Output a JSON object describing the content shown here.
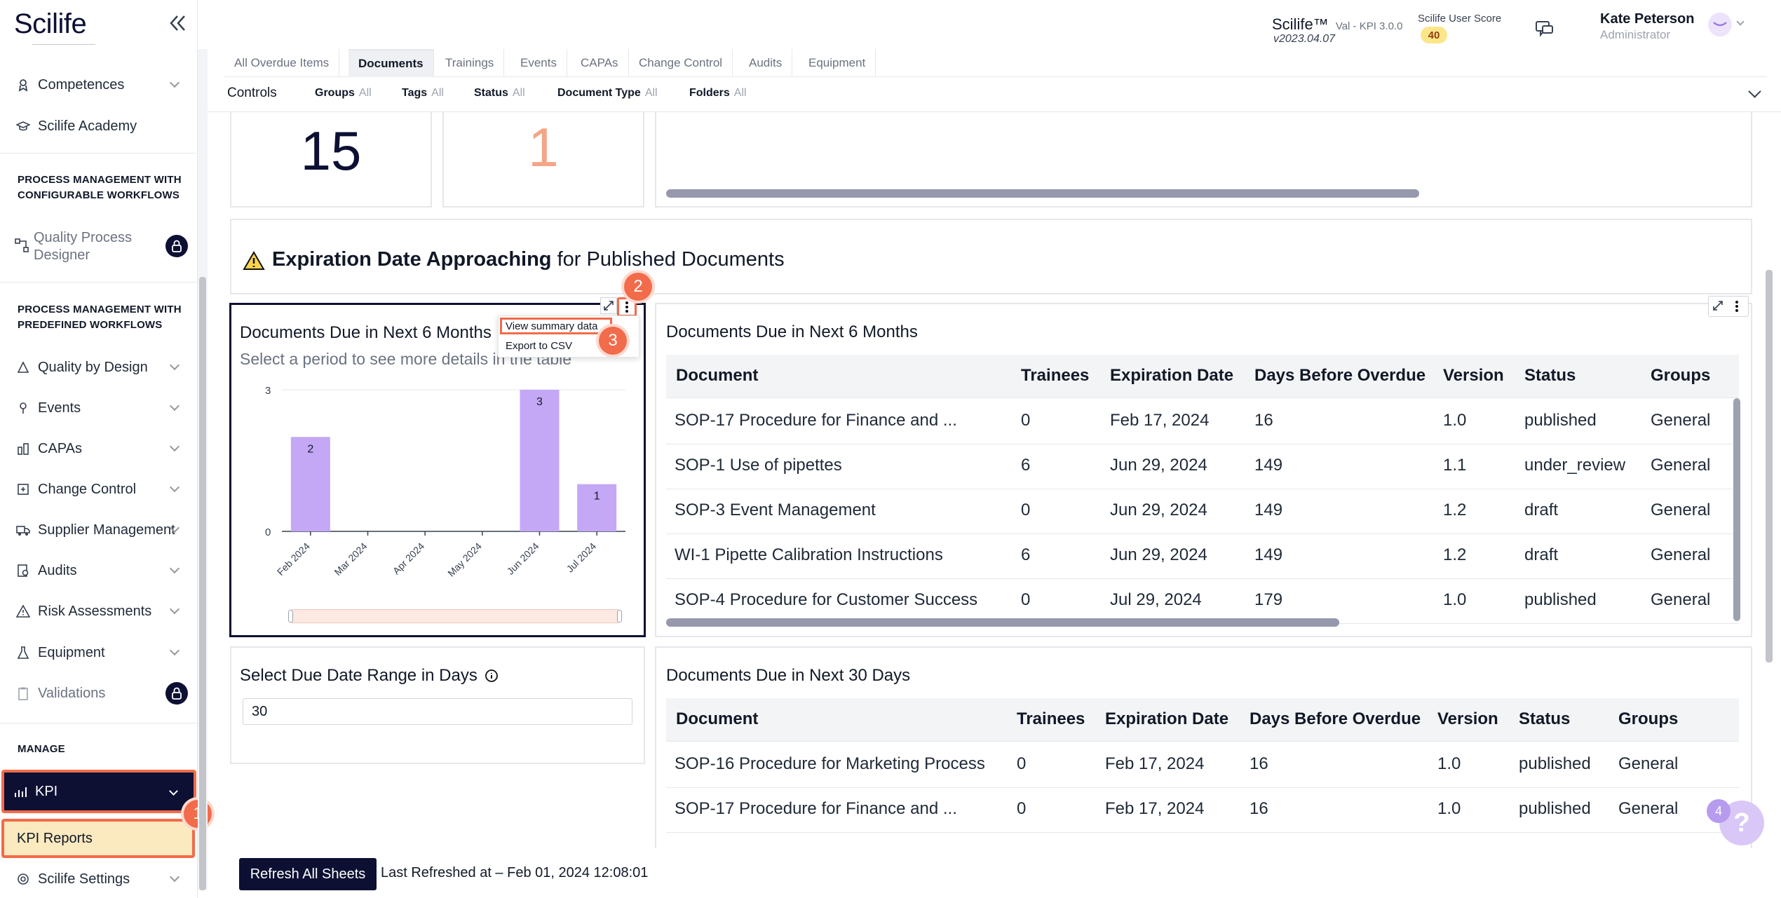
{
  "sidebar": {
    "logo": "Scilife",
    "items_top": [
      {
        "label": "Competences"
      },
      {
        "label": "Scilife Academy"
      }
    ],
    "section_workflows": "PROCESS MANAGEMENT WITH CONFIGURABLE WORKFLOWS",
    "qpd_label": "Quality Process Designer",
    "section_predefined": "PROCESS MANAGEMENT WITH PREDEFINED WORKFLOWS",
    "items_predefined": [
      {
        "label": "Quality by Design"
      },
      {
        "label": "Events"
      },
      {
        "label": "CAPAs"
      },
      {
        "label": "Change Control"
      },
      {
        "label": "Supplier Management"
      },
      {
        "label": "Audits"
      },
      {
        "label": "Risk Assessments"
      },
      {
        "label": "Equipment"
      },
      {
        "label": "Validations"
      }
    ],
    "section_manage": "MANAGE",
    "kpi_label": "KPI",
    "kpi_reports_label": "KPI Reports",
    "settings_label": "Scilife Settings"
  },
  "header": {
    "brand": "Scilife™",
    "env": "Val - KPI 3.0.0",
    "version": "v2023.04.07",
    "user_score_label": "Scilife User Score",
    "user_score": "40",
    "user_name": "Kate Peterson",
    "user_role": "Administrator"
  },
  "tabs": [
    {
      "label": "All Overdue Items"
    },
    {
      "label": "Documents"
    },
    {
      "label": "Trainings"
    },
    {
      "label": "Events"
    },
    {
      "label": "CAPAs"
    },
    {
      "label": "Change Control"
    },
    {
      "label": "Audits"
    },
    {
      "label": "Equipment"
    }
  ],
  "controls": {
    "label": "Controls",
    "filters": [
      {
        "name": "Groups",
        "value": "All"
      },
      {
        "name": "Tags",
        "value": "All"
      },
      {
        "name": "Status",
        "value": "All"
      },
      {
        "name": "Document Type",
        "value": "All"
      },
      {
        "name": "Folders",
        "value": "All"
      }
    ]
  },
  "kpis": {
    "first": "15",
    "second": "1"
  },
  "section": {
    "title_bold": "Expiration Date Approaching",
    "title_rest": "for Published Documents"
  },
  "chart_card": {
    "title": "Documents Due in Next 6 Months",
    "subtitle": "Select a period to see more details in the table",
    "menu": [
      "View summary data",
      "Export to CSV"
    ]
  },
  "chart_data": {
    "type": "bar",
    "categories": [
      "Feb 2024",
      "Mar 2024",
      "Apr 2024",
      "May 2024",
      "Jun 2024",
      "Jul 2024"
    ],
    "values": [
      2,
      0,
      0,
      0,
      3,
      1
    ],
    "yticks": [
      "3",
      "0"
    ],
    "ylim": [
      0,
      3
    ],
    "bar_color": "#c4a8f5"
  },
  "table1": {
    "title": "Documents Due in Next 6 Months",
    "columns": [
      "Document",
      "Trainees",
      "Expiration Date",
      "Days Before Overdue",
      "Version",
      "Status",
      "Groups"
    ],
    "rows": [
      [
        "SOP-17 Procedure for Finance and ...",
        "0",
        "Feb 17, 2024",
        "16",
        "1.0",
        "published",
        "General"
      ],
      [
        "SOP-1 Use of pipettes",
        "6",
        "Jun 29, 2024",
        "149",
        "1.1",
        "under_review",
        "General"
      ],
      [
        "SOP-3 Event Management",
        "0",
        "Jun 29, 2024",
        "149",
        "1.2",
        "draft",
        "General"
      ],
      [
        "WI-1 Pipette Calibration Instructions",
        "6",
        "Jun 29, 2024",
        "149",
        "1.2",
        "draft",
        "General"
      ],
      [
        "SOP-4 Procedure for Customer Success",
        "0",
        "Jul 29, 2024",
        "179",
        "1.0",
        "published",
        "General"
      ]
    ]
  },
  "range_card": {
    "title": "Select Due Date Range in Days",
    "value": "30"
  },
  "table2": {
    "title": "Documents Due in Next 30 Days",
    "columns": [
      "Document",
      "Trainees",
      "Expiration Date",
      "Days Before Overdue",
      "Version",
      "Status",
      "Groups"
    ],
    "rows": [
      [
        "SOP-16 Procedure for Marketing Process",
        "0",
        "Feb 17, 2024",
        "16",
        "1.0",
        "published",
        "General"
      ],
      [
        "SOP-17 Procedure for Finance and ...",
        "0",
        "Feb 17, 2024",
        "16",
        "1.0",
        "published",
        "General"
      ]
    ]
  },
  "footer": {
    "refresh_label": "Refresh All Sheets",
    "last_refreshed": "Last Refreshed at – Feb 01, 2024 12:08:01"
  },
  "help": {
    "badge": "4"
  },
  "markers": [
    "1",
    "2",
    "3"
  ],
  "colors": {
    "navy": "#0d1033",
    "accent": "#f26b4a",
    "bar": "#c4a8f5",
    "highlight": "#fbe9bf"
  }
}
